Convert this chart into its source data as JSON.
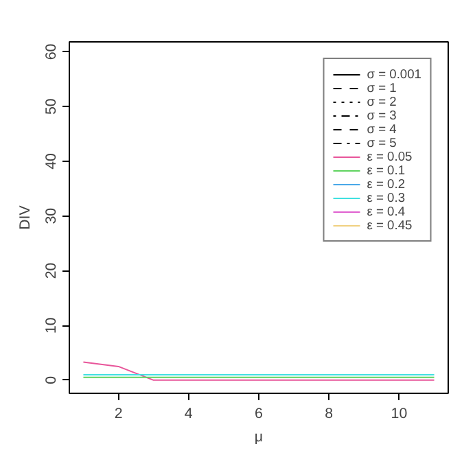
{
  "chart_data": {
    "type": "line",
    "xlabel": "μ",
    "ylabel": "DIV",
    "x": [
      1,
      2,
      3,
      4,
      5,
      6,
      7,
      8,
      9,
      10,
      11
    ],
    "xlim": [
      0.6,
      11.4
    ],
    "ylim": [
      -2.4,
      61.8
    ],
    "xticks": [
      2,
      4,
      6,
      8,
      10
    ],
    "yticks": [
      0,
      10,
      20,
      30,
      40,
      50,
      60
    ],
    "grid": false,
    "legend": "top right",
    "series": [
      {
        "name": "σ = 0.001",
        "color": "#000000",
        "line_style": "solid",
        "values": [
          null,
          null,
          null,
          null,
          null,
          null,
          null,
          null,
          null,
          null,
          null
        ]
      },
      {
        "name": "σ = 1",
        "color": "#000000",
        "line_style": "dashed",
        "values": [
          null,
          null,
          null,
          null,
          null,
          null,
          null,
          null,
          null,
          null,
          null
        ]
      },
      {
        "name": "σ = 2",
        "color": "#000000",
        "line_style": "dotted",
        "values": [
          null,
          null,
          null,
          null,
          null,
          null,
          null,
          null,
          null,
          null,
          null
        ]
      },
      {
        "name": "σ = 3",
        "color": "#000000",
        "line_style": "dotdash",
        "values": [
          null,
          null,
          null,
          null,
          null,
          null,
          null,
          null,
          null,
          null,
          null
        ]
      },
      {
        "name": "σ = 4",
        "color": "#000000",
        "line_style": "dashed",
        "values": [
          null,
          null,
          null,
          null,
          null,
          null,
          null,
          null,
          null,
          null,
          null
        ]
      },
      {
        "name": "σ = 5",
        "color": "#000000",
        "line_style": "dashdot",
        "values": [
          null,
          null,
          null,
          null,
          null,
          null,
          null,
          null,
          null,
          null,
          null
        ]
      },
      {
        "name": "ε = 0.05",
        "color": "#e8559a",
        "line_style": "solid",
        "values": [
          3.3,
          2.5,
          0,
          0,
          0,
          0,
          0,
          0,
          0,
          0,
          0
        ]
      },
      {
        "name": "ε = 0.1",
        "color": "#5fd35f",
        "line_style": "solid",
        "values": [
          0.5,
          0.5,
          0.5,
          0.5,
          0.5,
          0.5,
          0.5,
          0.5,
          0.5,
          0.5,
          0.5
        ]
      },
      {
        "name": "ε = 0.2",
        "color": "#4aa8e8",
        "line_style": "solid",
        "values": [
          null,
          null,
          null,
          null,
          null,
          null,
          null,
          null,
          null,
          null,
          null
        ]
      },
      {
        "name": "ε = 0.3",
        "color": "#40e0e0",
        "line_style": "solid",
        "values": [
          1,
          1,
          1,
          1,
          1,
          1,
          1,
          1,
          1,
          1,
          1
        ]
      },
      {
        "name": "ε = 0.4",
        "color": "#e060d0",
        "line_style": "solid",
        "values": [
          null,
          null,
          null,
          null,
          null,
          null,
          null,
          null,
          null,
          null,
          null
        ]
      },
      {
        "name": "ε = 0.45",
        "color": "#f0d080",
        "line_style": "solid",
        "values": [
          null,
          null,
          null,
          null,
          null,
          null,
          null,
          null,
          null,
          null,
          null
        ]
      }
    ]
  }
}
